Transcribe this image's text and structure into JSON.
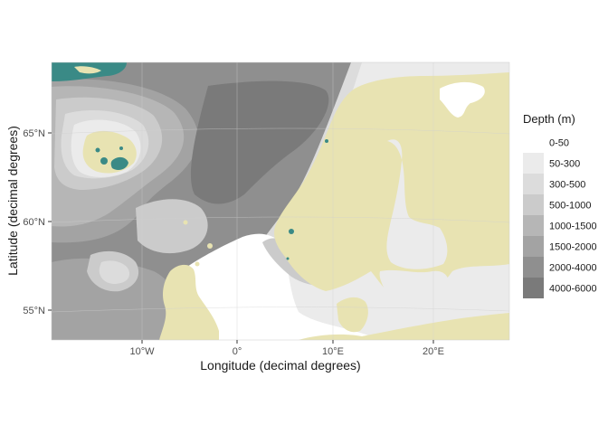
{
  "map": {
    "x_axis_title": "Longitude (decimal degrees)",
    "y_axis_title": "Latitude (decimal degrees)",
    "x_ticks": [
      "10°W",
      "0°",
      "10°E",
      "20°E"
    ],
    "y_ticks": [
      "55°N",
      "60°N",
      "65°N"
    ],
    "extent": {
      "lon": [
        -19,
        27.5
      ],
      "lat": [
        53.5,
        69
      ]
    },
    "land_color": "#e8e3b2",
    "glacier_color": "#3a8a86",
    "legend": {
      "title": "Depth (m)",
      "entries": [
        {
          "label": "0-50",
          "color": "#ffffff"
        },
        {
          "label": "50-300",
          "color": "#ebebeb"
        },
        {
          "label": "300-500",
          "color": "#dcdcdc"
        },
        {
          "label": "500-1000",
          "color": "#cbcbcb"
        },
        {
          "label": "1000-1500",
          "color": "#b6b6b6"
        },
        {
          "label": "1500-2000",
          "color": "#a3a3a3"
        },
        {
          "label": "2000-4000",
          "color": "#8f8f8f"
        },
        {
          "label": "4000-6000",
          "color": "#7a7a7a"
        }
      ]
    }
  }
}
